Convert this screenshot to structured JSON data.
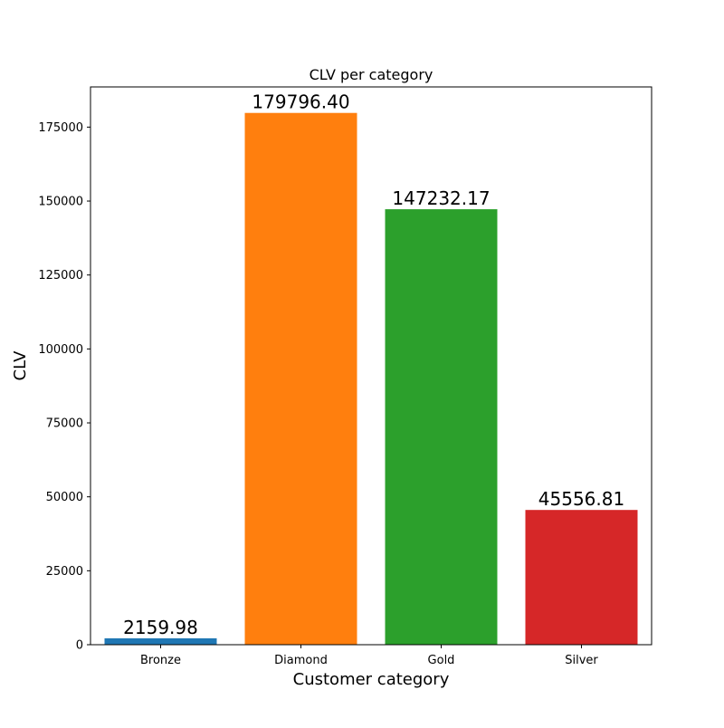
{
  "chart_data": {
    "type": "bar",
    "title": "CLV per category",
    "xlabel": "Customer category",
    "ylabel": "CLV",
    "categories": [
      "Bronze",
      "Diamond",
      "Gold",
      "Silver"
    ],
    "values": [
      2159.98,
      179796.4,
      147232.17,
      45556.81
    ],
    "value_labels": [
      "2159.98",
      "179796.40",
      "147232.17",
      "45556.81"
    ],
    "colors": [
      "#1f77b4",
      "#ff7f0e",
      "#2ca02c",
      "#d62728"
    ],
    "ylim": [
      0,
      188586.92
    ],
    "yticks": [
      0,
      25000,
      50000,
      75000,
      100000,
      125000,
      150000,
      175000
    ],
    "grid": false
  }
}
